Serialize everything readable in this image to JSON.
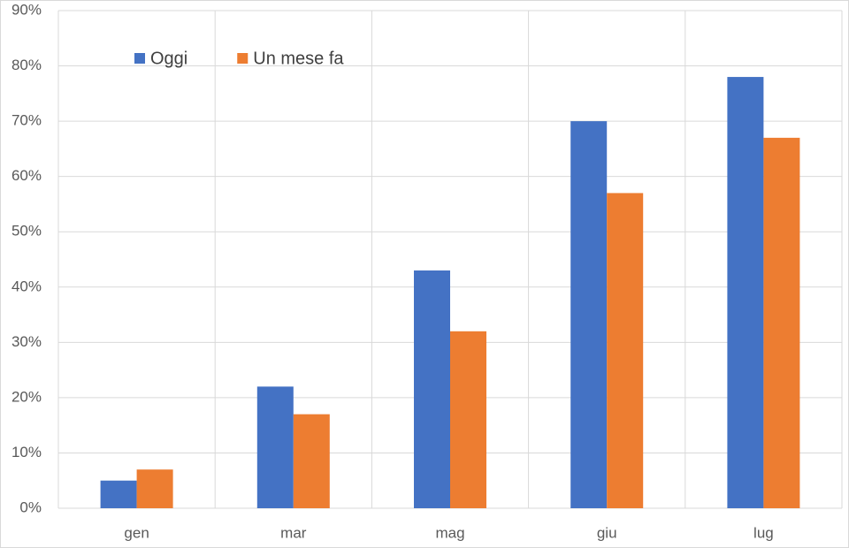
{
  "chart_data": {
    "type": "bar",
    "categories": [
      "gen",
      "mar",
      "mag",
      "giu",
      "lug"
    ],
    "series": [
      {
        "name": "Oggi",
        "color": "#4472c4",
        "values": [
          5,
          22,
          43,
          70,
          78
        ]
      },
      {
        "name": "Un mese fa",
        "color": "#ed7d31",
        "values": [
          7,
          17,
          32,
          57,
          67
        ]
      }
    ],
    "ylim": [
      0,
      90
    ],
    "yticks": [
      {
        "value": 0,
        "label": "0%"
      },
      {
        "value": 10,
        "label": "10%"
      },
      {
        "value": 20,
        "label": "20%"
      },
      {
        "value": 30,
        "label": "30%"
      },
      {
        "value": 40,
        "label": "40%"
      },
      {
        "value": 50,
        "label": "50%"
      },
      {
        "value": 60,
        "label": "60%"
      },
      {
        "value": 70,
        "label": "70%"
      },
      {
        "value": 80,
        "label": "80%"
      },
      {
        "value": 90,
        "label": "90%"
      }
    ],
    "grid": true,
    "legend": "upper-left"
  }
}
